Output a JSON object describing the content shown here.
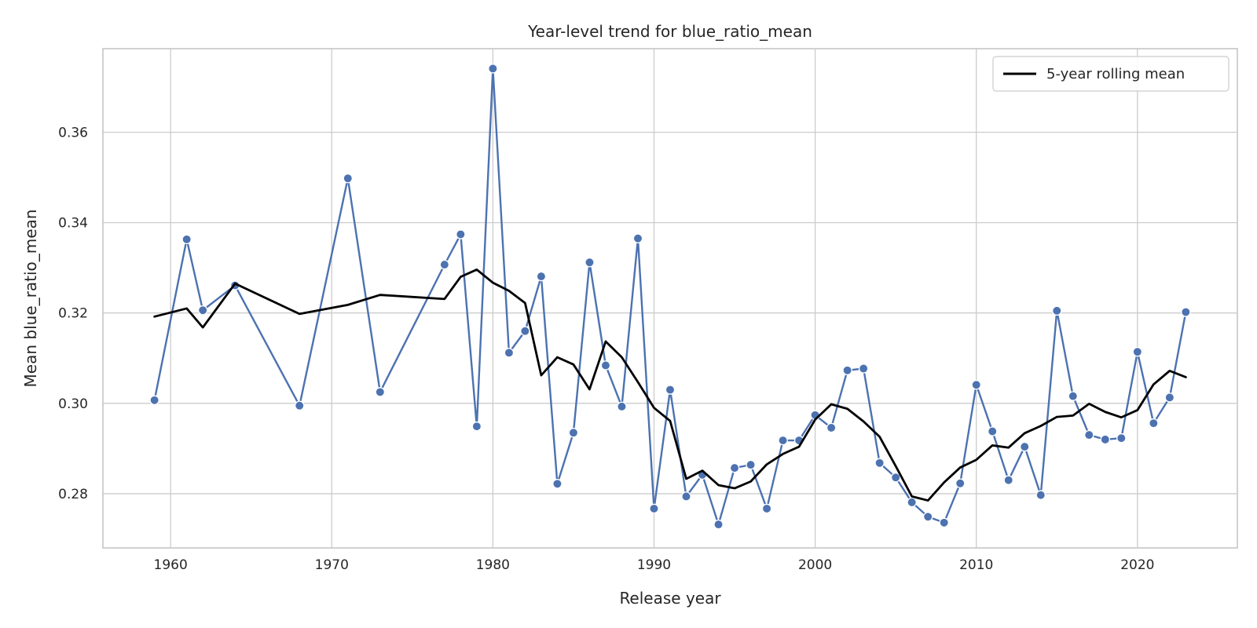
{
  "chart_data": {
    "type": "line",
    "title": "Year-level trend for blue_ratio_mean",
    "xlabel": "Release year",
    "ylabel": "Mean blue_ratio_mean",
    "xlim": [
      1955.8,
      2026.2
    ],
    "ylim": [
      0.268,
      0.3785
    ],
    "xticks": [
      1960,
      1970,
      1980,
      1990,
      2000,
      2010,
      2020
    ],
    "yticks": [
      0.28,
      0.3,
      0.32,
      0.34,
      0.36
    ],
    "ytick_labels": [
      "0.28",
      "0.30",
      "0.32",
      "0.34",
      "0.36"
    ],
    "grid": true,
    "legend_position": "top-right",
    "series": [
      {
        "name": "",
        "color": "#4c72b0",
        "style": "line-with-markers",
        "x": [
          1959,
          1961,
          1962,
          1964,
          1968,
          1971,
          1973,
          1977,
          1978,
          1979,
          1980,
          1981,
          1982,
          1983,
          1984,
          1985,
          1986,
          1987,
          1988,
          1989,
          1990,
          1991,
          1992,
          1993,
          1994,
          1995,
          1996,
          1997,
          1998,
          1999,
          2000,
          2001,
          2002,
          2003,
          2004,
          2005,
          2006,
          2007,
          2008,
          2009,
          2010,
          2011,
          2012,
          2013,
          2014,
          2015,
          2016,
          2017,
          2018,
          2019,
          2020,
          2021,
          2022,
          2023
        ],
        "y": [
          0.3007,
          0.3363,
          0.3206,
          0.3261,
          0.2995,
          0.3498,
          0.3025,
          0.3307,
          0.3374,
          0.2949,
          0.3741,
          0.3112,
          0.316,
          0.3281,
          0.2822,
          0.2935,
          0.3312,
          0.3084,
          0.2993,
          0.3365,
          0.2767,
          0.303,
          0.2794,
          0.2842,
          0.2732,
          0.2857,
          0.2864,
          0.2767,
          0.2918,
          0.2918,
          0.2974,
          0.2946,
          0.3073,
          0.3077,
          0.2868,
          0.2836,
          0.2781,
          0.2749,
          0.2736,
          0.2823,
          0.3041,
          0.2938,
          0.283,
          0.2904,
          0.2797,
          0.3205,
          0.3016,
          0.293,
          0.292,
          0.2923,
          0.3114,
          0.2956,
          0.3013,
          0.3202
        ]
      },
      {
        "name": "5-year rolling mean",
        "color": "#000000",
        "style": "line",
        "x": [
          1959,
          1961,
          1962,
          1964,
          1968,
          1971,
          1973,
          1977,
          1978,
          1979,
          1980,
          1981,
          1982,
          1983,
          1984,
          1985,
          1986,
          1987,
          1988,
          1989,
          1990,
          1991,
          1992,
          1993,
          1994,
          1995,
          1996,
          1997,
          1998,
          1999,
          2000,
          2001,
          2002,
          2003,
          2004,
          2005,
          2006,
          2007,
          2008,
          2009,
          2010,
          2011,
          2012,
          2013,
          2014,
          2015,
          2016,
          2017,
          2018,
          2019,
          2020,
          2021,
          2022,
          2023
        ],
        "y": [
          0.3192,
          0.321,
          0.3168,
          0.3265,
          0.3198,
          0.3218,
          0.324,
          0.3231,
          0.328,
          0.3296,
          0.3267,
          0.3249,
          0.3222,
          0.3062,
          0.3102,
          0.3086,
          0.3031,
          0.3137,
          0.3102,
          0.3047,
          0.299,
          0.2961,
          0.2833,
          0.2851,
          0.2819,
          0.2812,
          0.2827,
          0.2865,
          0.2888,
          0.2904,
          0.2964,
          0.2998,
          0.2988,
          0.296,
          0.2926,
          0.2861,
          0.2794,
          0.2785,
          0.2825,
          0.2858,
          0.2875,
          0.2907,
          0.2902,
          0.2934,
          0.295,
          0.297,
          0.2973,
          0.2999,
          0.2981,
          0.2969,
          0.2985,
          0.3042,
          0.3072,
          0.3058
        ]
      }
    ]
  }
}
